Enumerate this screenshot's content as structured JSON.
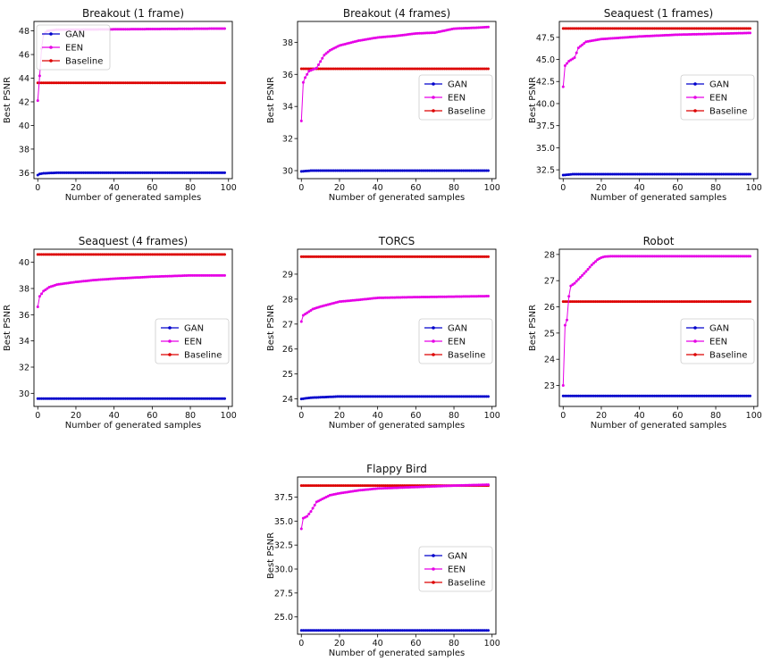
{
  "chart_data": [
    {
      "type": "line",
      "title": "Breakout (1 frame)",
      "xlabel": "Number of generated samples",
      "ylabel": "Best PSNR",
      "xlim": [
        -2,
        102
      ],
      "ylim": [
        35.5,
        48.8
      ],
      "xticks": [
        0,
        20,
        40,
        60,
        80,
        100
      ],
      "yticks": [
        36,
        38,
        40,
        42,
        44,
        46,
        48
      ],
      "ytick_labels": [
        "36",
        "38",
        "40",
        "42",
        "44",
        "46",
        "48"
      ],
      "legend": "upper-left",
      "series": [
        {
          "name": "GAN",
          "color": "#0000cc",
          "points": [
            [
              0,
              35.8
            ],
            [
              1,
              35.9
            ],
            [
              3,
              35.95
            ],
            [
              10,
              36.0
            ],
            [
              98,
              36.0
            ]
          ]
        },
        {
          "name": "EEN",
          "color": "#e600e6",
          "points": [
            [
              0,
              42.1
            ],
            [
              1,
              44.2
            ],
            [
              2,
              46.5
            ],
            [
              3,
              47.7
            ],
            [
              5,
              48.0
            ],
            [
              10,
              48.1
            ],
            [
              98,
              48.2
            ]
          ]
        },
        {
          "name": "Baseline",
          "color": "#dd0000",
          "points": [
            [
              0,
              43.6
            ],
            [
              98,
              43.6
            ]
          ]
        }
      ]
    },
    {
      "type": "line",
      "title": "Breakout (4 frames)",
      "xlabel": "Number of generated samples",
      "ylabel": "Best PSNR",
      "xlim": [
        -2,
        102
      ],
      "ylim": [
        29.5,
        39.3
      ],
      "xticks": [
        0,
        20,
        40,
        60,
        80,
        100
      ],
      "yticks": [
        30,
        32,
        34,
        36,
        38
      ],
      "ytick_labels": [
        "30",
        "32",
        "34",
        "36",
        "38"
      ],
      "legend": "lower-right",
      "series": [
        {
          "name": "GAN",
          "color": "#0000cc",
          "points": [
            [
              0,
              29.95
            ],
            [
              5,
              30.0
            ],
            [
              98,
              30.0
            ]
          ]
        },
        {
          "name": "EEN",
          "color": "#e600e6",
          "points": [
            [
              0,
              33.1
            ],
            [
              1,
              35.5
            ],
            [
              2,
              35.8
            ],
            [
              4,
              36.2
            ],
            [
              8,
              36.4
            ],
            [
              12,
              37.2
            ],
            [
              15,
              37.5
            ],
            [
              20,
              37.8
            ],
            [
              30,
              38.1
            ],
            [
              40,
              38.3
            ],
            [
              50,
              38.4
            ],
            [
              60,
              38.55
            ],
            [
              70,
              38.6
            ],
            [
              80,
              38.85
            ],
            [
              90,
              38.9
            ],
            [
              98,
              38.95
            ]
          ]
        },
        {
          "name": "Baseline",
          "color": "#dd0000",
          "points": [
            [
              0,
              36.35
            ],
            [
              98,
              36.35
            ]
          ]
        }
      ]
    },
    {
      "type": "line",
      "title": "Seaquest (1 frames)",
      "xlabel": "Number of generated samples",
      "ylabel": "Best PSNR",
      "xlim": [
        -2,
        102
      ],
      "ylim": [
        31.5,
        49.3
      ],
      "xticks": [
        0,
        20,
        40,
        60,
        80,
        100
      ],
      "yticks": [
        32.5,
        35.0,
        37.5,
        40.0,
        42.5,
        45.0,
        47.5
      ],
      "ytick_labels": [
        "32.5",
        "35.0",
        "37.5",
        "40.0",
        "42.5",
        "45.0",
        "47.5"
      ],
      "legend": "lower-right",
      "series": [
        {
          "name": "GAN",
          "color": "#0000cc",
          "points": [
            [
              0,
              31.9
            ],
            [
              5,
              32.0
            ],
            [
              98,
              32.0
            ]
          ]
        },
        {
          "name": "EEN",
          "color": "#e600e6",
          "points": [
            [
              0,
              41.9
            ],
            [
              1,
              44.3
            ],
            [
              3,
              44.8
            ],
            [
              6,
              45.2
            ],
            [
              8,
              46.3
            ],
            [
              12,
              47.0
            ],
            [
              20,
              47.3
            ],
            [
              40,
              47.6
            ],
            [
              60,
              47.8
            ],
            [
              80,
              47.9
            ],
            [
              98,
              48.0
            ]
          ]
        },
        {
          "name": "Baseline",
          "color": "#dd0000",
          "points": [
            [
              0,
              48.5
            ],
            [
              98,
              48.5
            ]
          ]
        }
      ]
    },
    {
      "type": "line",
      "title": "Seaquest (4 frames)",
      "xlabel": "Number of generated samples",
      "ylabel": "Best PSNR",
      "xlim": [
        -2,
        102
      ],
      "ylim": [
        29.0,
        41.0
      ],
      "xticks": [
        0,
        20,
        40,
        60,
        80,
        100
      ],
      "yticks": [
        30,
        32,
        34,
        36,
        38,
        40
      ],
      "ytick_labels": [
        "30",
        "32",
        "34",
        "36",
        "38",
        "40"
      ],
      "legend": "center-right",
      "series": [
        {
          "name": "GAN",
          "color": "#0000cc",
          "points": [
            [
              0,
              29.6
            ],
            [
              98,
              29.6
            ]
          ]
        },
        {
          "name": "EEN",
          "color": "#e600e6",
          "points": [
            [
              0,
              36.6
            ],
            [
              1,
              37.4
            ],
            [
              3,
              37.8
            ],
            [
              6,
              38.1
            ],
            [
              10,
              38.3
            ],
            [
              20,
              38.5
            ],
            [
              30,
              38.65
            ],
            [
              40,
              38.75
            ],
            [
              60,
              38.9
            ],
            [
              80,
              39.0
            ],
            [
              98,
              39.0
            ]
          ]
        },
        {
          "name": "Baseline",
          "color": "#dd0000",
          "points": [
            [
              0,
              40.6
            ],
            [
              98,
              40.6
            ]
          ]
        }
      ]
    },
    {
      "type": "line",
      "title": "TORCS",
      "xlabel": "Number of generated samples",
      "ylabel": "Best PSNR",
      "xlim": [
        -2,
        102
      ],
      "ylim": [
        23.7,
        30.0
      ],
      "xticks": [
        0,
        20,
        40,
        60,
        80,
        100
      ],
      "yticks": [
        24,
        25,
        26,
        27,
        28,
        29
      ],
      "ytick_labels": [
        "24",
        "25",
        "26",
        "27",
        "28",
        "29"
      ],
      "legend": "center-right",
      "series": [
        {
          "name": "GAN",
          "color": "#0000cc",
          "points": [
            [
              0,
              24.0
            ],
            [
              5,
              24.05
            ],
            [
              20,
              24.1
            ],
            [
              98,
              24.1
            ]
          ]
        },
        {
          "name": "EEN",
          "color": "#e600e6",
          "points": [
            [
              0,
              27.1
            ],
            [
              1,
              27.35
            ],
            [
              3,
              27.45
            ],
            [
              6,
              27.6
            ],
            [
              10,
              27.7
            ],
            [
              20,
              27.9
            ],
            [
              30,
              27.97
            ],
            [
              40,
              28.05
            ],
            [
              60,
              28.08
            ],
            [
              80,
              28.1
            ],
            [
              98,
              28.12
            ]
          ]
        },
        {
          "name": "Baseline",
          "color": "#dd0000",
          "points": [
            [
              0,
              29.7
            ],
            [
              98,
              29.7
            ]
          ]
        }
      ]
    },
    {
      "type": "line",
      "title": "Robot",
      "xlabel": "Number of generated samples",
      "ylabel": "Best PSNR",
      "xlim": [
        -2,
        102
      ],
      "ylim": [
        22.2,
        28.2
      ],
      "xticks": [
        0,
        20,
        40,
        60,
        80,
        100
      ],
      "yticks": [
        23,
        24,
        25,
        26,
        27,
        28
      ],
      "ytick_labels": [
        "23",
        "24",
        "25",
        "26",
        "27",
        "28"
      ],
      "legend": "center-right",
      "series": [
        {
          "name": "GAN",
          "color": "#0000cc",
          "points": [
            [
              0,
              22.6
            ],
            [
              98,
              22.6
            ]
          ]
        },
        {
          "name": "EEN",
          "color": "#e600e6",
          "points": [
            [
              0,
              23.0
            ],
            [
              1,
              25.3
            ],
            [
              2,
              25.5
            ],
            [
              3,
              26.4
            ],
            [
              4,
              26.8
            ],
            [
              6,
              26.9
            ],
            [
              8,
              27.05
            ],
            [
              10,
              27.2
            ],
            [
              12,
              27.35
            ],
            [
              15,
              27.6
            ],
            [
              18,
              27.8
            ],
            [
              20,
              27.88
            ],
            [
              22,
              27.92
            ],
            [
              25,
              27.93
            ],
            [
              98,
              27.93
            ]
          ]
        },
        {
          "name": "Baseline",
          "color": "#dd0000",
          "points": [
            [
              0,
              26.2
            ],
            [
              98,
              26.2
            ]
          ]
        }
      ]
    },
    {
      "type": "line",
      "title": "Flappy Bird",
      "xlabel": "Number of generated samples",
      "ylabel": "Best PSNR",
      "xlim": [
        -2,
        102
      ],
      "ylim": [
        23.2,
        39.6
      ],
      "xticks": [
        0,
        20,
        40,
        60,
        80,
        100
      ],
      "yticks": [
        25.0,
        27.5,
        30.0,
        32.5,
        35.0,
        37.5
      ],
      "ytick_labels": [
        "25.0",
        "27.5",
        "30.0",
        "32.5",
        "35.0",
        "37.5"
      ],
      "legend": "center-right",
      "series": [
        {
          "name": "GAN",
          "color": "#0000cc",
          "points": [
            [
              0,
              23.6
            ],
            [
              98,
              23.6
            ]
          ]
        },
        {
          "name": "EEN",
          "color": "#e600e6",
          "points": [
            [
              0,
              34.2
            ],
            [
              1,
              35.3
            ],
            [
              3,
              35.5
            ],
            [
              5,
              36.0
            ],
            [
              8,
              37.0
            ],
            [
              10,
              37.2
            ],
            [
              15,
              37.7
            ],
            [
              20,
              37.9
            ],
            [
              30,
              38.2
            ],
            [
              40,
              38.4
            ],
            [
              60,
              38.55
            ],
            [
              80,
              38.7
            ],
            [
              98,
              38.8
            ]
          ]
        },
        {
          "name": "Baseline",
          "color": "#dd0000",
          "points": [
            [
              0,
              38.7
            ],
            [
              98,
              38.7
            ]
          ]
        }
      ]
    }
  ]
}
